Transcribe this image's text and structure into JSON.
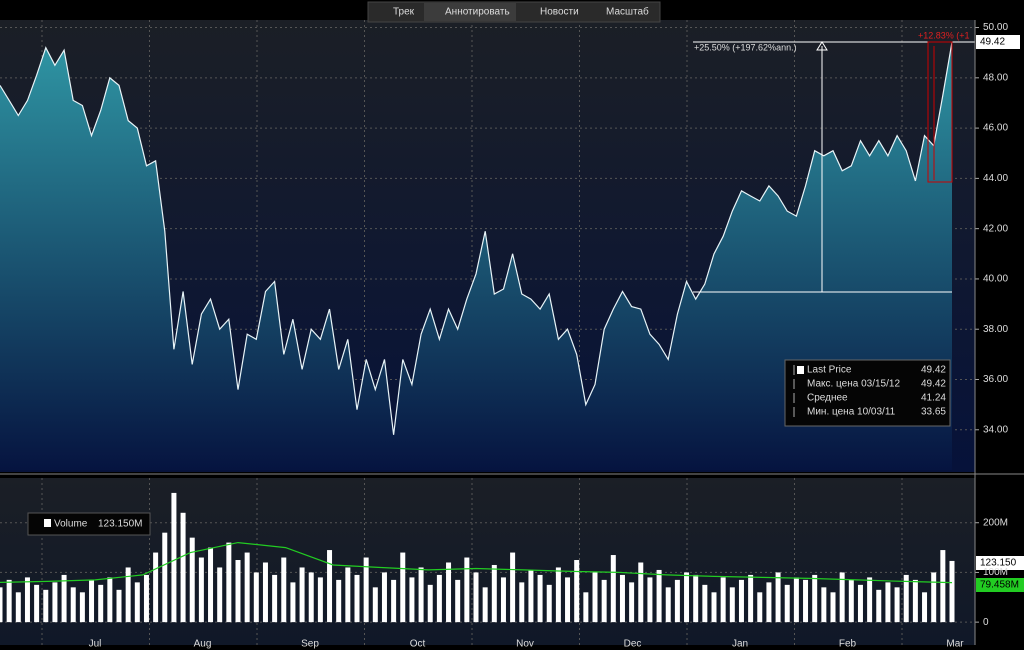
{
  "toolbar": [
    "Трек",
    "Аннотировать",
    "Новости",
    "Масштаб"
  ],
  "chart_data": [
    {
      "type": "area",
      "series": [
        {
          "name": "Last Price",
          "color": "#e8f4f8",
          "values": [
            47.7,
            47.1,
            46.5,
            47.1,
            48.1,
            49.2,
            48.5,
            49.1,
            47.1,
            46.9,
            45.7,
            46.7,
            48.0,
            47.7,
            46.3,
            46.0,
            44.5,
            44.7,
            41.9,
            37.2,
            39.5,
            36.6,
            38.6,
            39.2,
            38.0,
            38.4,
            35.6,
            37.8,
            37.6,
            39.5,
            39.9,
            37.0,
            38.4,
            36.4,
            38.0,
            37.6,
            38.8,
            36.4,
            37.6,
            34.8,
            36.8,
            35.6,
            36.8,
            33.8,
            36.8,
            35.8,
            37.8,
            38.8,
            37.6,
            38.8,
            38.0,
            39.2,
            40.2,
            41.9,
            39.4,
            39.6,
            41.0,
            39.4,
            39.2,
            38.8,
            39.4,
            37.6,
            38.0,
            37.0,
            35.0,
            35.8,
            38.0,
            38.8,
            39.5,
            38.9,
            38.8,
            37.8,
            37.4,
            36.8,
            38.6,
            39.9,
            39.2,
            39.8,
            41.0,
            41.7,
            42.7,
            43.5,
            43.3,
            43.1,
            43.7,
            43.3,
            42.7,
            42.5,
            43.7,
            45.1,
            44.9,
            45.1,
            44.3,
            44.5,
            45.5,
            44.9,
            45.5,
            44.9,
            45.7,
            45.1,
            43.9,
            45.7,
            45.3,
            47.3,
            49.42
          ]
        }
      ],
      "ylim": [
        32.4,
        50.3
      ],
      "yticks": [
        {
          "value": 34,
          "label": "34.00"
        },
        {
          "value": 36,
          "label": "36.00"
        },
        {
          "value": 38,
          "label": "38.00"
        },
        {
          "value": 40,
          "label": "40.00"
        },
        {
          "value": 42,
          "label": "42.00"
        },
        {
          "value": 44,
          "label": "44.00"
        },
        {
          "value": 46,
          "label": "46.00"
        },
        {
          "value": 48,
          "label": "48.00"
        },
        {
          "value": 50,
          "label": "50.00"
        }
      ],
      "last_label": "49.42",
      "annotations": [
        "+25.50% (+197.62%ann.)",
        "+12.83% (+1"
      ],
      "legend": [
        [
          "Last Price",
          "49.42"
        ],
        [
          "Макс. цена 03/15/12",
          "49.42"
        ],
        [
          "Среднее",
          "41.24"
        ],
        [
          "Мин. цена 10/03/11",
          "33.65"
        ]
      ]
    },
    {
      "type": "bar",
      "series": [
        {
          "name": "Volume",
          "color": "#ffffff",
          "values": [
            70,
            85,
            60,
            90,
            75,
            65,
            80,
            95,
            70,
            60,
            85,
            75,
            90,
            65,
            110,
            80,
            95,
            140,
            180,
            260,
            220,
            170,
            130,
            150,
            110,
            160,
            125,
            140,
            100,
            120,
            95,
            130,
            80,
            110,
            100,
            90,
            145,
            85,
            110,
            95,
            130,
            70,
            100,
            85,
            140,
            90,
            110,
            75,
            95,
            120,
            85,
            130,
            100,
            70,
            115,
            90,
            140,
            80,
            105,
            95,
            75,
            110,
            90,
            125,
            60,
            100,
            85,
            135,
            95,
            80,
            120,
            90,
            105,
            70,
            85,
            100,
            95,
            75,
            60,
            90,
            70,
            85,
            95,
            60,
            80,
            100,
            75,
            90,
            85,
            95,
            70,
            60,
            100,
            85,
            75,
            90,
            65,
            80,
            70,
            95,
            85,
            60,
            100,
            145,
            123.15
          ]
        }
      ],
      "legend_value": "123.150M",
      "last_label": "123.150",
      "moving_average": {
        "color": "#22cc22",
        "values": [
          80,
          82,
          85,
          95,
          140,
          160,
          150,
          115,
          110,
          105,
          108,
          105,
          102,
          100,
          95,
          92,
          90,
          88,
          85,
          82,
          79.458
        ],
        "last_label": "79.458M"
      },
      "ylim": [
        -46,
        290
      ],
      "yticks": [
        0,
        {
          "value": 100,
          "label": "100M"
        },
        {
          "value": 200,
          "label": "200M"
        }
      ],
      "months": [
        "Jul",
        "Aug",
        "Sep",
        "Oct",
        "Nov",
        "Dec",
        "Jan",
        "Feb",
        "Mar"
      ]
    }
  ]
}
